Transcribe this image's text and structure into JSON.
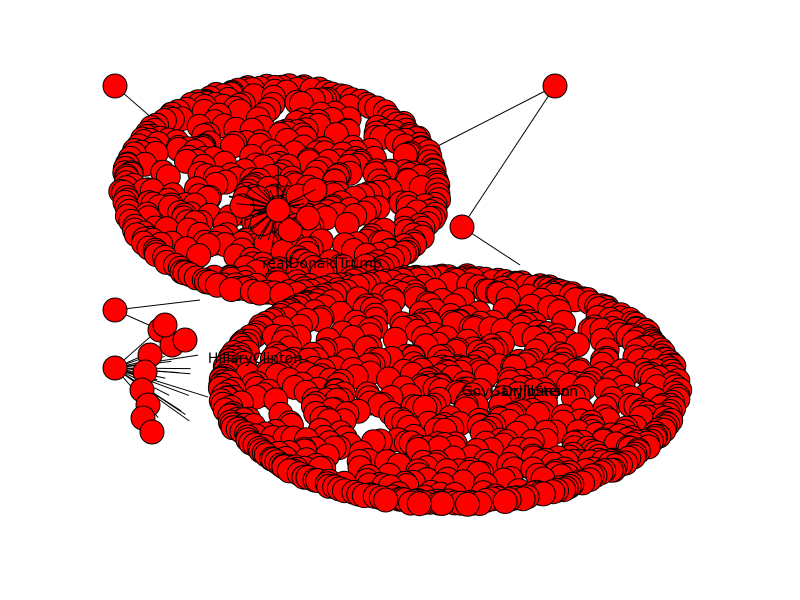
{
  "graph": {
    "node_color": "#ff0000",
    "edge_color": "#000000",
    "labels": [
      {
        "id": "donald",
        "text": "realDonaldTrump"
      },
      {
        "id": "hillary",
        "text": "HillaryClinton"
      },
      {
        "id": "garyjohnson",
        "text": "GovGaryJohnson"
      },
      {
        "id": "drjill",
        "text": "DrJillStein"
      }
    ]
  }
}
